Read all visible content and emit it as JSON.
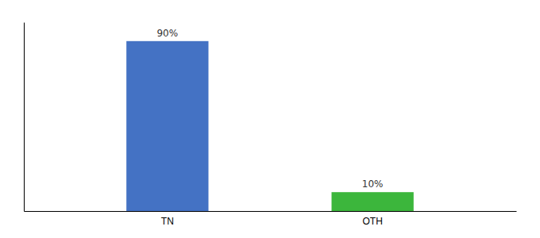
{
  "chart_data": {
    "type": "bar",
    "categories": [
      "TN",
      "OTH"
    ],
    "values": [
      90,
      10
    ],
    "value_labels": [
      "90%",
      "10%"
    ],
    "colors": [
      "#4472C4",
      "#3CB63C"
    ],
    "ylim": [
      0,
      100
    ],
    "data_labels": true,
    "tick_labels": "x"
  }
}
